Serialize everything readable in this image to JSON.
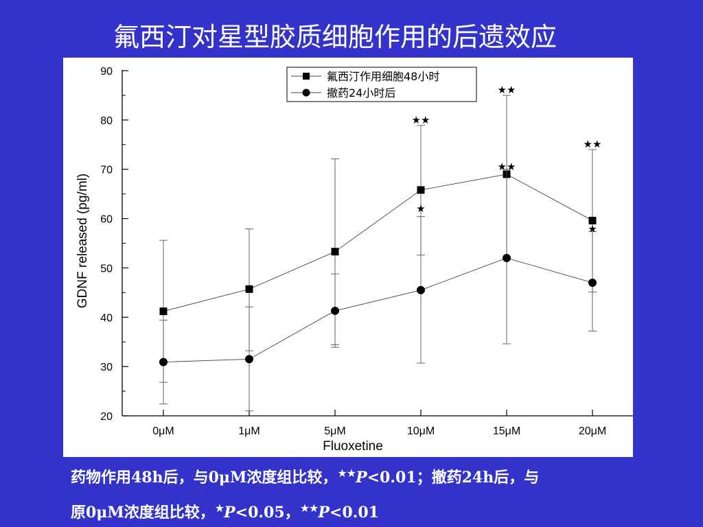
{
  "title": "氟西汀对星型胶质细胞作用的后遗效应",
  "caption": {
    "line1": {
      "pre": "药物作用48h后，与0μM浓度组比较，",
      "stars": "★★",
      "p": "P",
      "post": "<0.01；撤药24h后，与"
    },
    "line2": {
      "pre": "原0μM浓度组比较，",
      "stars1": "★",
      "p1": "P",
      "mid": "<0.05，",
      "stars2": "★★",
      "p2": "P",
      "post": "<0.01"
    }
  },
  "chart_data": {
    "type": "line",
    "xlabel": "Fluoxetine",
    "ylabel": "GDNF released (pg/ml)",
    "categories": [
      "0μM",
      "1μM",
      "5μM",
      "10μM",
      "15μM",
      "20μM"
    ],
    "ylim": [
      20,
      90
    ],
    "yticks": [
      20,
      30,
      40,
      50,
      60,
      70,
      80,
      90
    ],
    "legend_position": "top-right",
    "series": [
      {
        "name": "氟西汀作用细胞48小时",
        "marker": "square",
        "values": [
          41.2,
          45.7,
          53.3,
          65.8,
          69.0,
          59.6
        ],
        "err_upper": [
          55.6,
          57.9,
          72.1,
          78.9,
          85.0,
          74.0
        ],
        "err_lower": [
          26.8,
          33.2,
          34.4,
          52.6,
          52.0,
          45.1
        ],
        "markers": [
          "",
          "",
          "",
          "★★",
          "★★",
          "★★"
        ]
      },
      {
        "name": "撤药24小时后",
        "marker": "circle",
        "values": [
          30.9,
          31.5,
          41.3,
          45.5,
          52.0,
          47.0
        ],
        "err_upper": [
          39.4,
          42.1,
          48.8,
          60.4,
          70.0,
          57.4
        ],
        "err_lower": [
          22.4,
          21.0,
          33.9,
          30.7,
          34.6,
          37.2
        ],
        "markers": [
          "",
          "",
          "",
          "★",
          "★★",
          "★"
        ]
      }
    ]
  }
}
